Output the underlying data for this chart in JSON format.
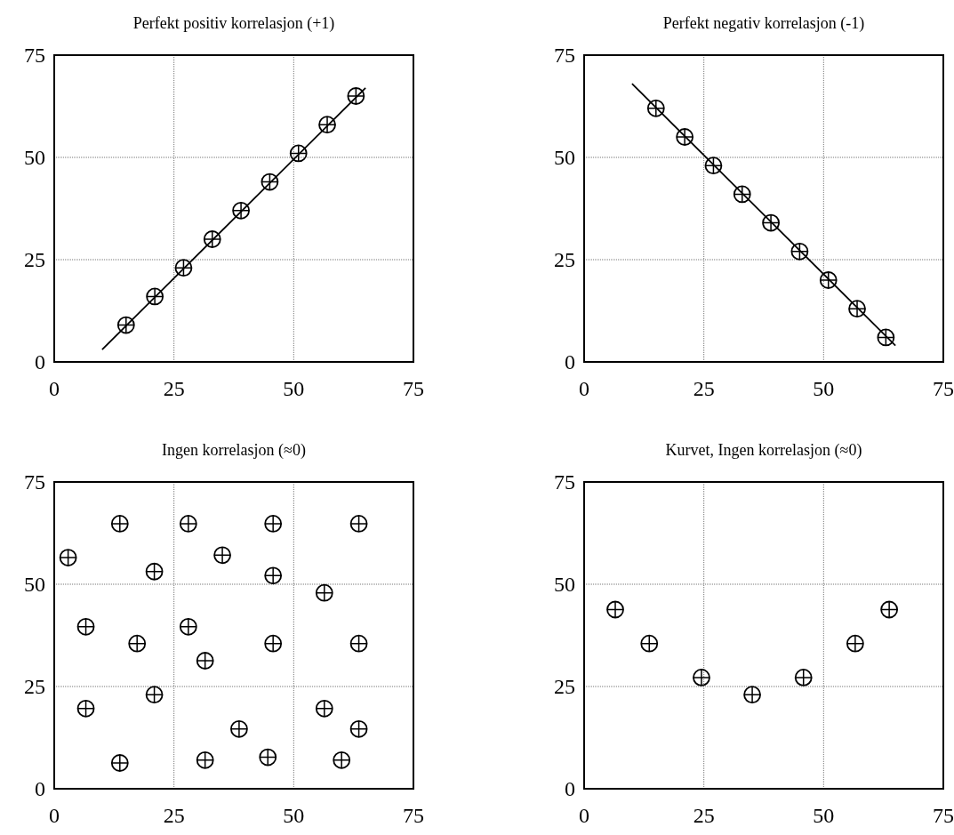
{
  "chart_data": [
    {
      "type": "scatter",
      "title": "Perfekt positiv korrelasjon (+1)",
      "xlim": [
        0,
        75
      ],
      "ylim": [
        0,
        75
      ],
      "xticks": [
        0,
        25,
        50,
        75
      ],
      "yticks": [
        0,
        25,
        50,
        75
      ],
      "grid": true,
      "series": [
        {
          "marker": "circle",
          "color": "#000000",
          "x": [
            15,
            21,
            27,
            33,
            39,
            45,
            51,
            57,
            63
          ],
          "values": [
            9,
            16,
            23,
            30,
            37,
            44,
            51,
            58,
            65
          ]
        },
        {
          "type": "line",
          "marker": "none",
          "color": "#000000",
          "x": [
            10,
            65
          ],
          "values": [
            3,
            67
          ]
        }
      ]
    },
    {
      "type": "scatter",
      "title": "Perfekt negativ korrelasjon (-1)",
      "xlim": [
        0,
        75
      ],
      "ylim": [
        0,
        75
      ],
      "xticks": [
        0,
        25,
        50,
        75
      ],
      "yticks": [
        0,
        25,
        50,
        75
      ],
      "grid": true,
      "series": [
        {
          "marker": "circle",
          "color": "#000000",
          "x": [
            15,
            21,
            27,
            33,
            39,
            45,
            51,
            57,
            63
          ],
          "values": [
            62,
            55,
            48,
            41,
            34,
            27,
            20,
            13,
            6
          ]
        },
        {
          "type": "line",
          "marker": "none",
          "color": "#000000",
          "x": [
            10,
            65
          ],
          "values": [
            68,
            4
          ]
        }
      ]
    },
    {
      "type": "scatter",
      "title": "Ingen korrelasjon (≈0)",
      "xlim": [
        0,
        75
      ],
      "ylim": [
        0,
        75
      ],
      "xticks": [
        0,
        25,
        50,
        75
      ],
      "yticks": [
        0,
        25,
        50,
        75
      ],
      "grid": true,
      "series": [
        {
          "marker": "circle",
          "color": "#000000",
          "x": [
            13.7,
            2.9,
            20.9,
            28,
            35.1,
            45.7,
            45.7,
            63.6,
            56.4,
            6.6,
            17.3,
            28,
            31.5,
            45.7,
            63.6,
            20.9,
            6.6,
            13.7,
            38.6,
            31.5,
            44.6,
            56.4,
            63.6,
            60
          ],
          "values": [
            64.8,
            56.5,
            53.1,
            64.8,
            57.1,
            64.8,
            52.1,
            64.8,
            47.9,
            39.6,
            35.5,
            39.6,
            31.3,
            35.5,
            35.5,
            23,
            19.6,
            6.3,
            14.6,
            7,
            7.7,
            19.6,
            14.6,
            7
          ]
        }
      ]
    },
    {
      "type": "scatter",
      "title": "Kurvet, Ingen korrelasjon (≈0)",
      "xlim": [
        0,
        75
      ],
      "ylim": [
        0,
        75
      ],
      "xticks": [
        0,
        25,
        50,
        75
      ],
      "yticks": [
        0,
        25,
        50,
        75
      ],
      "grid": true,
      "series": [
        {
          "marker": "circle",
          "color": "#000000",
          "x": [
            6.5,
            13.6,
            24.5,
            35.1,
            45.8,
            56.6,
            63.7
          ],
          "values": [
            43.8,
            35.5,
            27.2,
            23,
            27.2,
            35.5,
            43.8
          ]
        }
      ]
    }
  ]
}
